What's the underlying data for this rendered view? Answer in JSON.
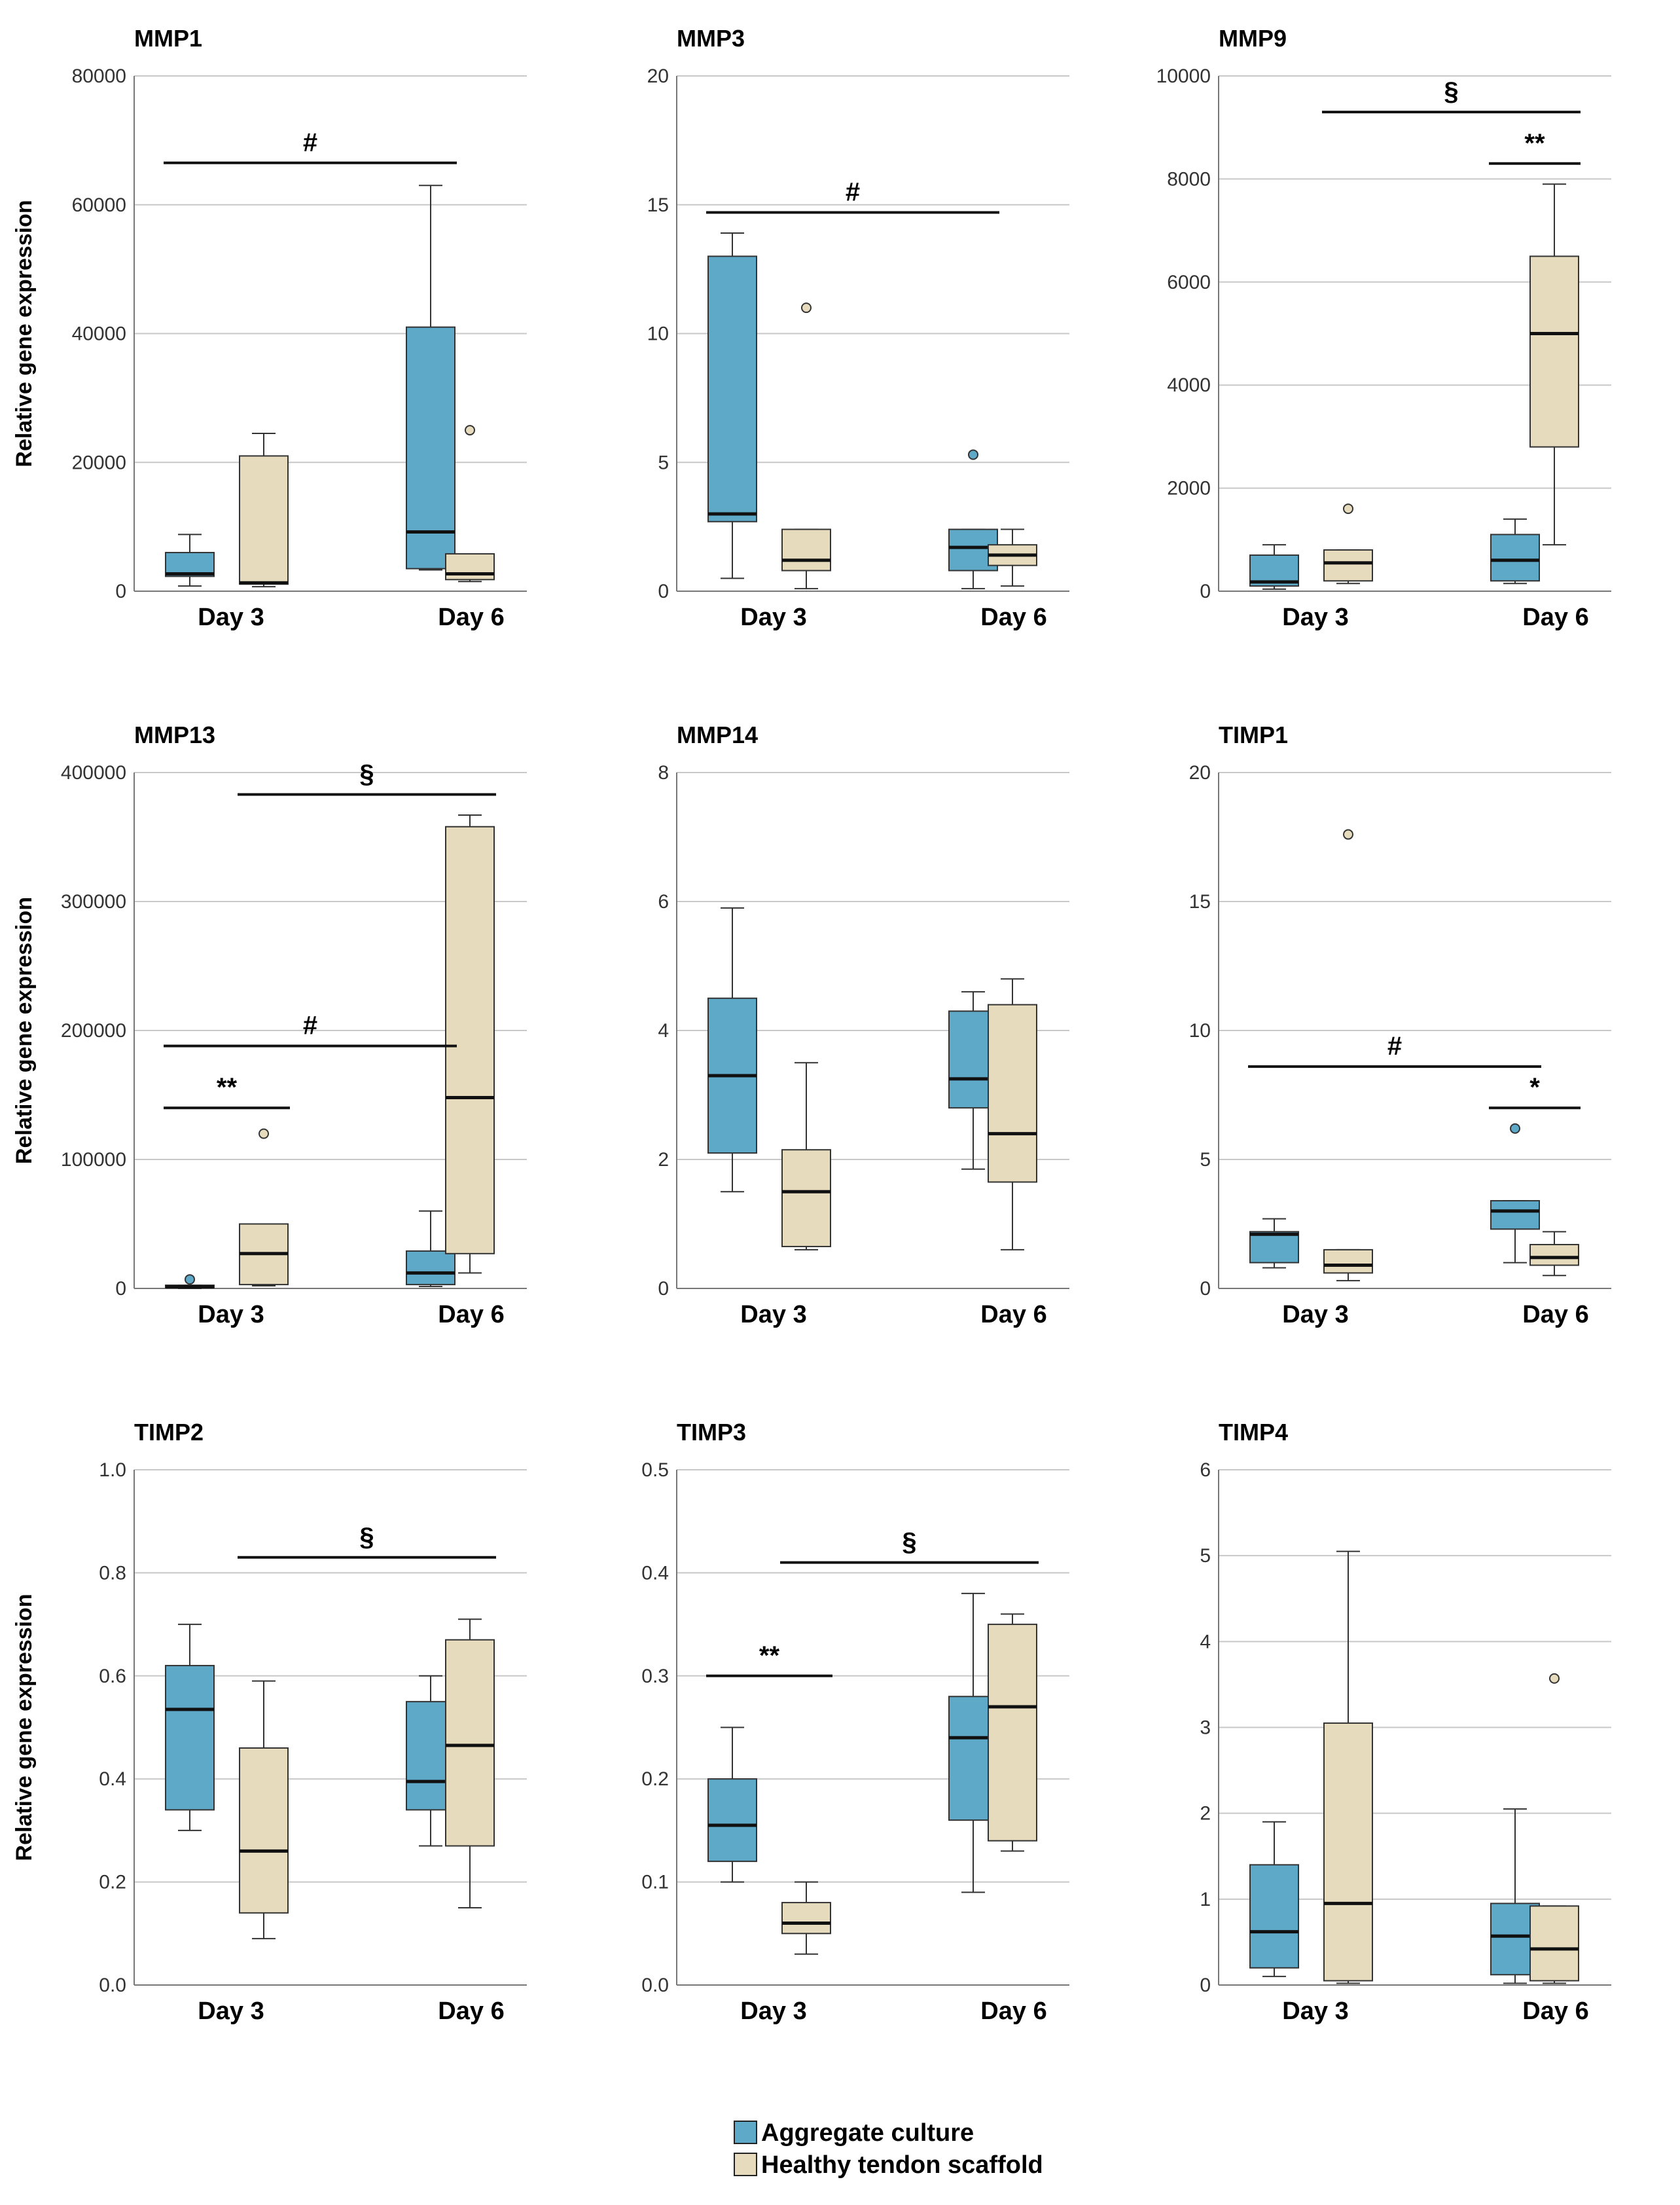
{
  "chart_data": [
    {
      "type": "box",
      "title": "MMP1",
      "ylabel": "Relative gene expression",
      "categories": [
        "Day 3",
        "Day 6"
      ],
      "ylim": [
        0,
        80000
      ],
      "yticks": [
        0,
        20000,
        40000,
        60000,
        80000
      ],
      "tick_labels": [
        "0",
        "20000",
        "40000",
        "60000",
        "80000"
      ],
      "series": [
        {
          "name": "Aggregate culture",
          "boxes": [
            {
              "min": 800,
              "q1": 2300,
              "median": 2700,
              "q3": 6000,
              "max": 8800,
              "outliers": []
            },
            {
              "min": 3300,
              "q1": 3500,
              "median": 9200,
              "q3": 41000,
              "max": 63000,
              "outliers": []
            }
          ]
        },
        {
          "name": "Healthy tendon scaffold",
          "boxes": [
            {
              "min": 700,
              "q1": 1100,
              "median": 1300,
              "q3": 21000,
              "max": 24500,
              "outliers": []
            },
            {
              "min": 1500,
              "q1": 1800,
              "median": 2700,
              "q3": 5800,
              "max": 5800,
              "outliers": [
                25000
              ]
            }
          ]
        }
      ],
      "annotations": [
        {
          "label": "#",
          "from": "Day 3 Aggregate culture",
          "to": "Day 6 Aggregate culture"
        }
      ]
    },
    {
      "type": "box",
      "title": "MMP3",
      "ylabel": "",
      "categories": [
        "Day 3",
        "Day 6"
      ],
      "ylim": [
        0,
        20
      ],
      "yticks": [
        0,
        5,
        10,
        15,
        20
      ],
      "tick_labels": [
        "0",
        "5",
        "10",
        "15",
        "20"
      ],
      "series": [
        {
          "name": "Aggregate culture",
          "boxes": [
            {
              "min": 0.5,
              "q1": 2.7,
              "median": 3.0,
              "q3": 13.0,
              "max": 13.9,
              "outliers": []
            },
            {
              "min": 0.1,
              "q1": 0.8,
              "median": 1.7,
              "q3": 2.4,
              "max": 2.4,
              "outliers": [
                5.3
              ]
            }
          ]
        },
        {
          "name": "Healthy tendon scaffold",
          "boxes": [
            {
              "min": 0.1,
              "q1": 0.8,
              "median": 1.2,
              "q3": 2.4,
              "max": 2.4,
              "outliers": [
                11.0
              ]
            },
            {
              "min": 0.2,
              "q1": 1.0,
              "median": 1.4,
              "q3": 1.8,
              "max": 2.4,
              "outliers": []
            }
          ]
        }
      ],
      "annotations": [
        {
          "label": "#",
          "from": "Day 3 Aggregate culture",
          "to": "Day 6 Aggregate culture"
        }
      ]
    },
    {
      "type": "box",
      "title": "MMP9",
      "ylabel": "",
      "categories": [
        "Day 3",
        "Day 6"
      ],
      "ylim": [
        0,
        10000
      ],
      "yticks": [
        0,
        2000,
        4000,
        6000,
        8000,
        10000
      ],
      "tick_labels": [
        "0",
        "2000",
        "4000",
        "6000",
        "8000",
        "10000"
      ],
      "series": [
        {
          "name": "Aggregate culture",
          "boxes": [
            {
              "min": 40,
              "q1": 100,
              "median": 180,
              "q3": 700,
              "max": 900,
              "outliers": []
            },
            {
              "min": 150,
              "q1": 200,
              "median": 600,
              "q3": 1100,
              "max": 1400,
              "outliers": []
            }
          ]
        },
        {
          "name": "Healthy tendon scaffold",
          "boxes": [
            {
              "min": 150,
              "q1": 200,
              "median": 550,
              "q3": 800,
              "max": 800,
              "outliers": [
                1600
              ]
            },
            {
              "min": 900,
              "q1": 2800,
              "median": 5000,
              "q3": 6500,
              "max": 7900,
              "outliers": []
            }
          ]
        }
      ],
      "annotations": [
        {
          "label": "§",
          "from": "Day 3 Healthy tendon scaffold",
          "to": "Day 6 Healthy tendon scaffold"
        },
        {
          "label": "**",
          "from": "Day 6 Aggregate culture",
          "to": "Day 6 Healthy tendon scaffold"
        }
      ]
    },
    {
      "type": "box",
      "title": "MMP13",
      "ylabel": "Relative gene expression",
      "categories": [
        "Day 3",
        "Day 6"
      ],
      "ylim": [
        0,
        400000
      ],
      "yticks": [
        0,
        100000,
        200000,
        300000,
        400000
      ],
      "tick_labels": [
        "0",
        "100000",
        "200000",
        "300000",
        "400000"
      ],
      "series": [
        {
          "name": "Aggregate culture",
          "boxes": [
            {
              "min": 0,
              "q1": 500,
              "median": 1200,
              "q3": 2500,
              "max": 2500,
              "outliers": [
                7000
              ]
            },
            {
              "min": 1500,
              "q1": 3000,
              "median": 12000,
              "q3": 29000,
              "max": 60000,
              "outliers": []
            }
          ]
        },
        {
          "name": "Healthy tendon scaffold",
          "boxes": [
            {
              "min": 2000,
              "q1": 3000,
              "median": 27000,
              "q3": 50000,
              "max": 50000,
              "outliers": [
                120000
              ]
            },
            {
              "min": 12000,
              "q1": 27000,
              "median": 148000,
              "q3": 358000,
              "max": 367000,
              "outliers": []
            }
          ]
        }
      ],
      "annotations": [
        {
          "label": "§",
          "from": "Day 3 Healthy tendon scaffold",
          "to": "Day 6 Healthy tendon scaffold"
        },
        {
          "label": "#",
          "from": "Day 3 Aggregate culture",
          "to": "Day 6 Aggregate culture"
        },
        {
          "label": "**",
          "from": "Day 3 Aggregate culture",
          "to": "Day 3 Healthy tendon scaffold"
        }
      ]
    },
    {
      "type": "box",
      "title": "MMP14",
      "ylabel": "",
      "categories": [
        "Day 3",
        "Day 6"
      ],
      "ylim": [
        0,
        8
      ],
      "yticks": [
        0,
        2,
        4,
        6,
        8
      ],
      "tick_labels": [
        "0",
        "2",
        "4",
        "6",
        "8"
      ],
      "series": [
        {
          "name": "Aggregate culture",
          "boxes": [
            {
              "min": 1.5,
              "q1": 2.1,
              "median": 3.3,
              "q3": 4.5,
              "max": 5.9,
              "outliers": []
            },
            {
              "min": 1.85,
              "q1": 2.8,
              "median": 3.25,
              "q3": 4.3,
              "max": 4.6,
              "outliers": []
            }
          ]
        },
        {
          "name": "Healthy tendon scaffold",
          "boxes": [
            {
              "min": 0.6,
              "q1": 0.65,
              "median": 1.5,
              "q3": 2.15,
              "max": 3.5,
              "outliers": []
            },
            {
              "min": 0.6,
              "q1": 1.65,
              "median": 2.4,
              "q3": 4.4,
              "max": 4.8,
              "outliers": []
            }
          ]
        }
      ],
      "annotations": []
    },
    {
      "type": "box",
      "title": "TIMP1",
      "ylabel": "",
      "categories": [
        "Day 3",
        "Day 6"
      ],
      "ylim": [
        0,
        20
      ],
      "yticks": [
        0,
        5,
        10,
        15,
        20
      ],
      "tick_labels": [
        "0",
        "5",
        "10",
        "15",
        "20"
      ],
      "series": [
        {
          "name": "Aggregate culture",
          "boxes": [
            {
              "min": 0.8,
              "q1": 1.0,
              "median": 2.1,
              "q3": 2.2,
              "max": 2.7,
              "outliers": []
            },
            {
              "min": 1.0,
              "q1": 2.3,
              "median": 3.0,
              "q3": 3.4,
              "max": 3.4,
              "outliers": [
                6.2
              ]
            }
          ]
        },
        {
          "name": "Healthy tendon scaffold",
          "boxes": [
            {
              "min": 0.3,
              "q1": 0.6,
              "median": 0.9,
              "q3": 1.5,
              "max": 1.5,
              "outliers": [
                17.6
              ]
            },
            {
              "min": 0.5,
              "q1": 0.9,
              "median": 1.2,
              "q3": 1.7,
              "max": 2.2,
              "outliers": []
            }
          ]
        }
      ],
      "annotations": [
        {
          "label": "#",
          "from": "Day 3 Aggregate culture",
          "to": "Day 6 Aggregate culture"
        },
        {
          "label": "*",
          "from": "Day 6 Aggregate culture",
          "to": "Day 6 Healthy tendon scaffold"
        }
      ]
    },
    {
      "type": "box",
      "title": "TIMP2",
      "ylabel": "Relative gene expression",
      "categories": [
        "Day 3",
        "Day 6"
      ],
      "ylim": [
        0,
        1
      ],
      "yticks": [
        0,
        0.2,
        0.4,
        0.6,
        0.8,
        1.0
      ],
      "tick_labels": [
        "0.0",
        "0.2",
        "0.4",
        "0.6",
        "0.8",
        "1.0"
      ],
      "series": [
        {
          "name": "Aggregate culture",
          "boxes": [
            {
              "min": 0.3,
              "q1": 0.34,
              "median": 0.535,
              "q3": 0.62,
              "max": 0.7,
              "outliers": []
            },
            {
              "min": 0.27,
              "q1": 0.34,
              "median": 0.395,
              "q3": 0.55,
              "max": 0.6,
              "outliers": []
            }
          ]
        },
        {
          "name": "Healthy tendon scaffold",
          "boxes": [
            {
              "min": 0.09,
              "q1": 0.14,
              "median": 0.26,
              "q3": 0.46,
              "max": 0.59,
              "outliers": []
            },
            {
              "min": 0.15,
              "q1": 0.27,
              "median": 0.465,
              "q3": 0.67,
              "max": 0.71,
              "outliers": []
            }
          ]
        }
      ],
      "annotations": [
        {
          "label": "§",
          "from": "Day 3 Healthy tendon scaffold",
          "to": "Day 6 Healthy tendon scaffold"
        }
      ]
    },
    {
      "type": "box",
      "title": "TIMP3",
      "ylabel": "",
      "categories": [
        "Day 3",
        "Day 6"
      ],
      "ylim": [
        0,
        0.5
      ],
      "yticks": [
        0,
        0.1,
        0.2,
        0.3,
        0.4,
        0.5
      ],
      "tick_labels": [
        "0.0",
        "0.1",
        "0.2",
        "0.3",
        "0.4",
        "0.5"
      ],
      "series": [
        {
          "name": "Aggregate culture",
          "boxes": [
            {
              "min": 0.1,
              "q1": 0.12,
              "median": 0.155,
              "q3": 0.2,
              "max": 0.25,
              "outliers": []
            },
            {
              "min": 0.09,
              "q1": 0.16,
              "median": 0.24,
              "q3": 0.28,
              "max": 0.38,
              "outliers": []
            }
          ]
        },
        {
          "name": "Healthy tendon scaffold",
          "boxes": [
            {
              "min": 0.03,
              "q1": 0.05,
              "median": 0.06,
              "q3": 0.08,
              "max": 0.1,
              "outliers": []
            },
            {
              "min": 0.13,
              "q1": 0.14,
              "median": 0.27,
              "q3": 0.35,
              "max": 0.36,
              "outliers": []
            }
          ]
        }
      ],
      "annotations": [
        {
          "label": "§",
          "from": "Day 3 Healthy tendon scaffold",
          "to": "Day 6 Healthy tendon scaffold"
        },
        {
          "label": "**",
          "from": "Day 3 Aggregate culture",
          "to": "Day 3 Healthy tendon scaffold"
        }
      ]
    },
    {
      "type": "box",
      "title": "TIMP4",
      "ylabel": "",
      "categories": [
        "Day 3",
        "Day 6"
      ],
      "ylim": [
        0,
        6
      ],
      "yticks": [
        0,
        1,
        2,
        3,
        4,
        5,
        6
      ],
      "tick_labels": [
        "0",
        "1",
        "2",
        "3",
        "4",
        "5",
        "6"
      ],
      "series": [
        {
          "name": "Aggregate culture",
          "boxes": [
            {
              "min": 0.1,
              "q1": 0.2,
              "median": 0.62,
              "q3": 1.4,
              "max": 1.9,
              "outliers": []
            },
            {
              "min": 0.02,
              "q1": 0.12,
              "median": 0.57,
              "q3": 0.95,
              "max": 2.05,
              "outliers": []
            }
          ]
        },
        {
          "name": "Healthy tendon scaffold",
          "boxes": [
            {
              "min": 0.02,
              "q1": 0.05,
              "median": 0.95,
              "q3": 3.05,
              "max": 5.05,
              "outliers": []
            },
            {
              "min": 0.02,
              "q1": 0.05,
              "median": 0.42,
              "q3": 0.92,
              "max": 0.92,
              "outliers": [
                3.57
              ]
            }
          ]
        }
      ],
      "annotations": []
    }
  ],
  "legend": {
    "items": [
      {
        "label": "Aggregate culture",
        "color": "#5ea8c8"
      },
      {
        "label": "Healthy tendon scaffold",
        "color": "#e6dcbd"
      }
    ]
  },
  "colors": {
    "aggregate": "#5ea8c8",
    "scaffold": "#e6dcbd",
    "gridline": "#c8c8c8",
    "axis": "#777777"
  }
}
